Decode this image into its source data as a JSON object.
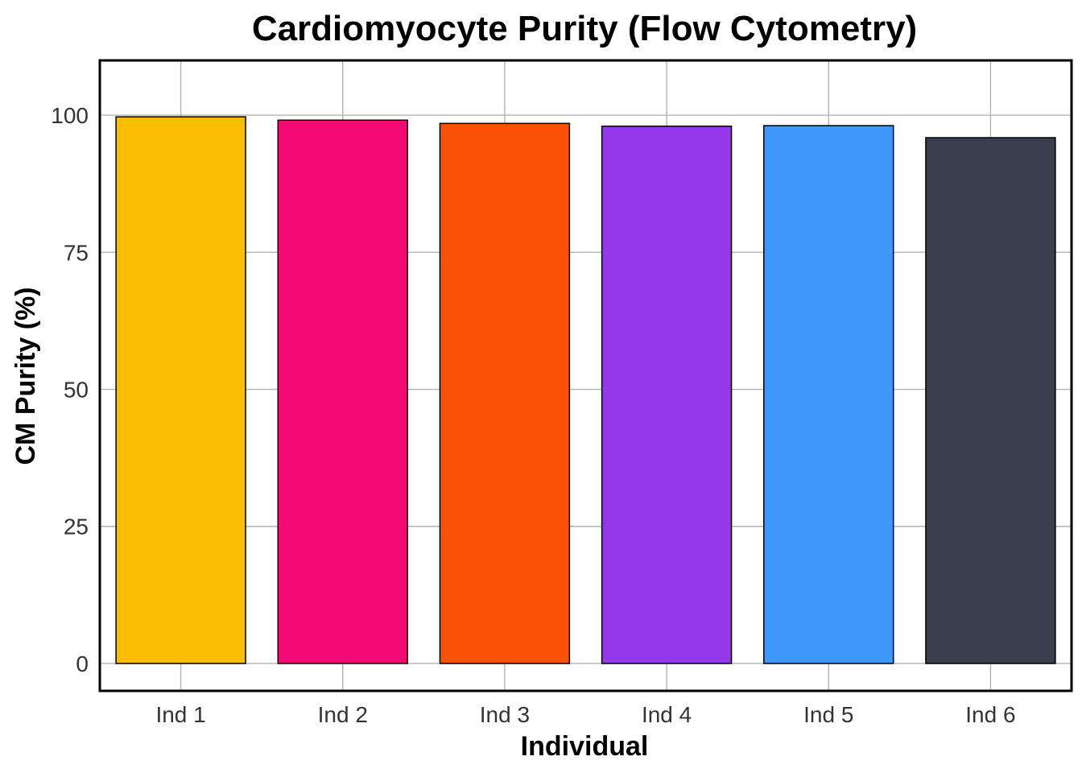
{
  "chart_data": {
    "type": "bar",
    "title": "Cardiomyocyte Purity (Flow Cytometry)",
    "xlabel": "Individual",
    "ylabel": "CM Purity (%)",
    "categories": [
      "Ind 1",
      "Ind 2",
      "Ind 3",
      "Ind 4",
      "Ind 5",
      "Ind 6"
    ],
    "values": [
      99.7,
      99.1,
      98.5,
      98.0,
      98.1,
      95.9
    ],
    "colors": [
      "#FBBC04",
      "#F50A75",
      "#FA5204",
      "#9339EB",
      "#3F97FC",
      "#3A3F50"
    ],
    "ylim": [
      -5,
      110
    ],
    "yticks": [
      0,
      25,
      50,
      75,
      100
    ],
    "ytick_labels": [
      "0",
      "25",
      "50",
      "75",
      "100"
    ],
    "grid": true,
    "legend": "none"
  }
}
